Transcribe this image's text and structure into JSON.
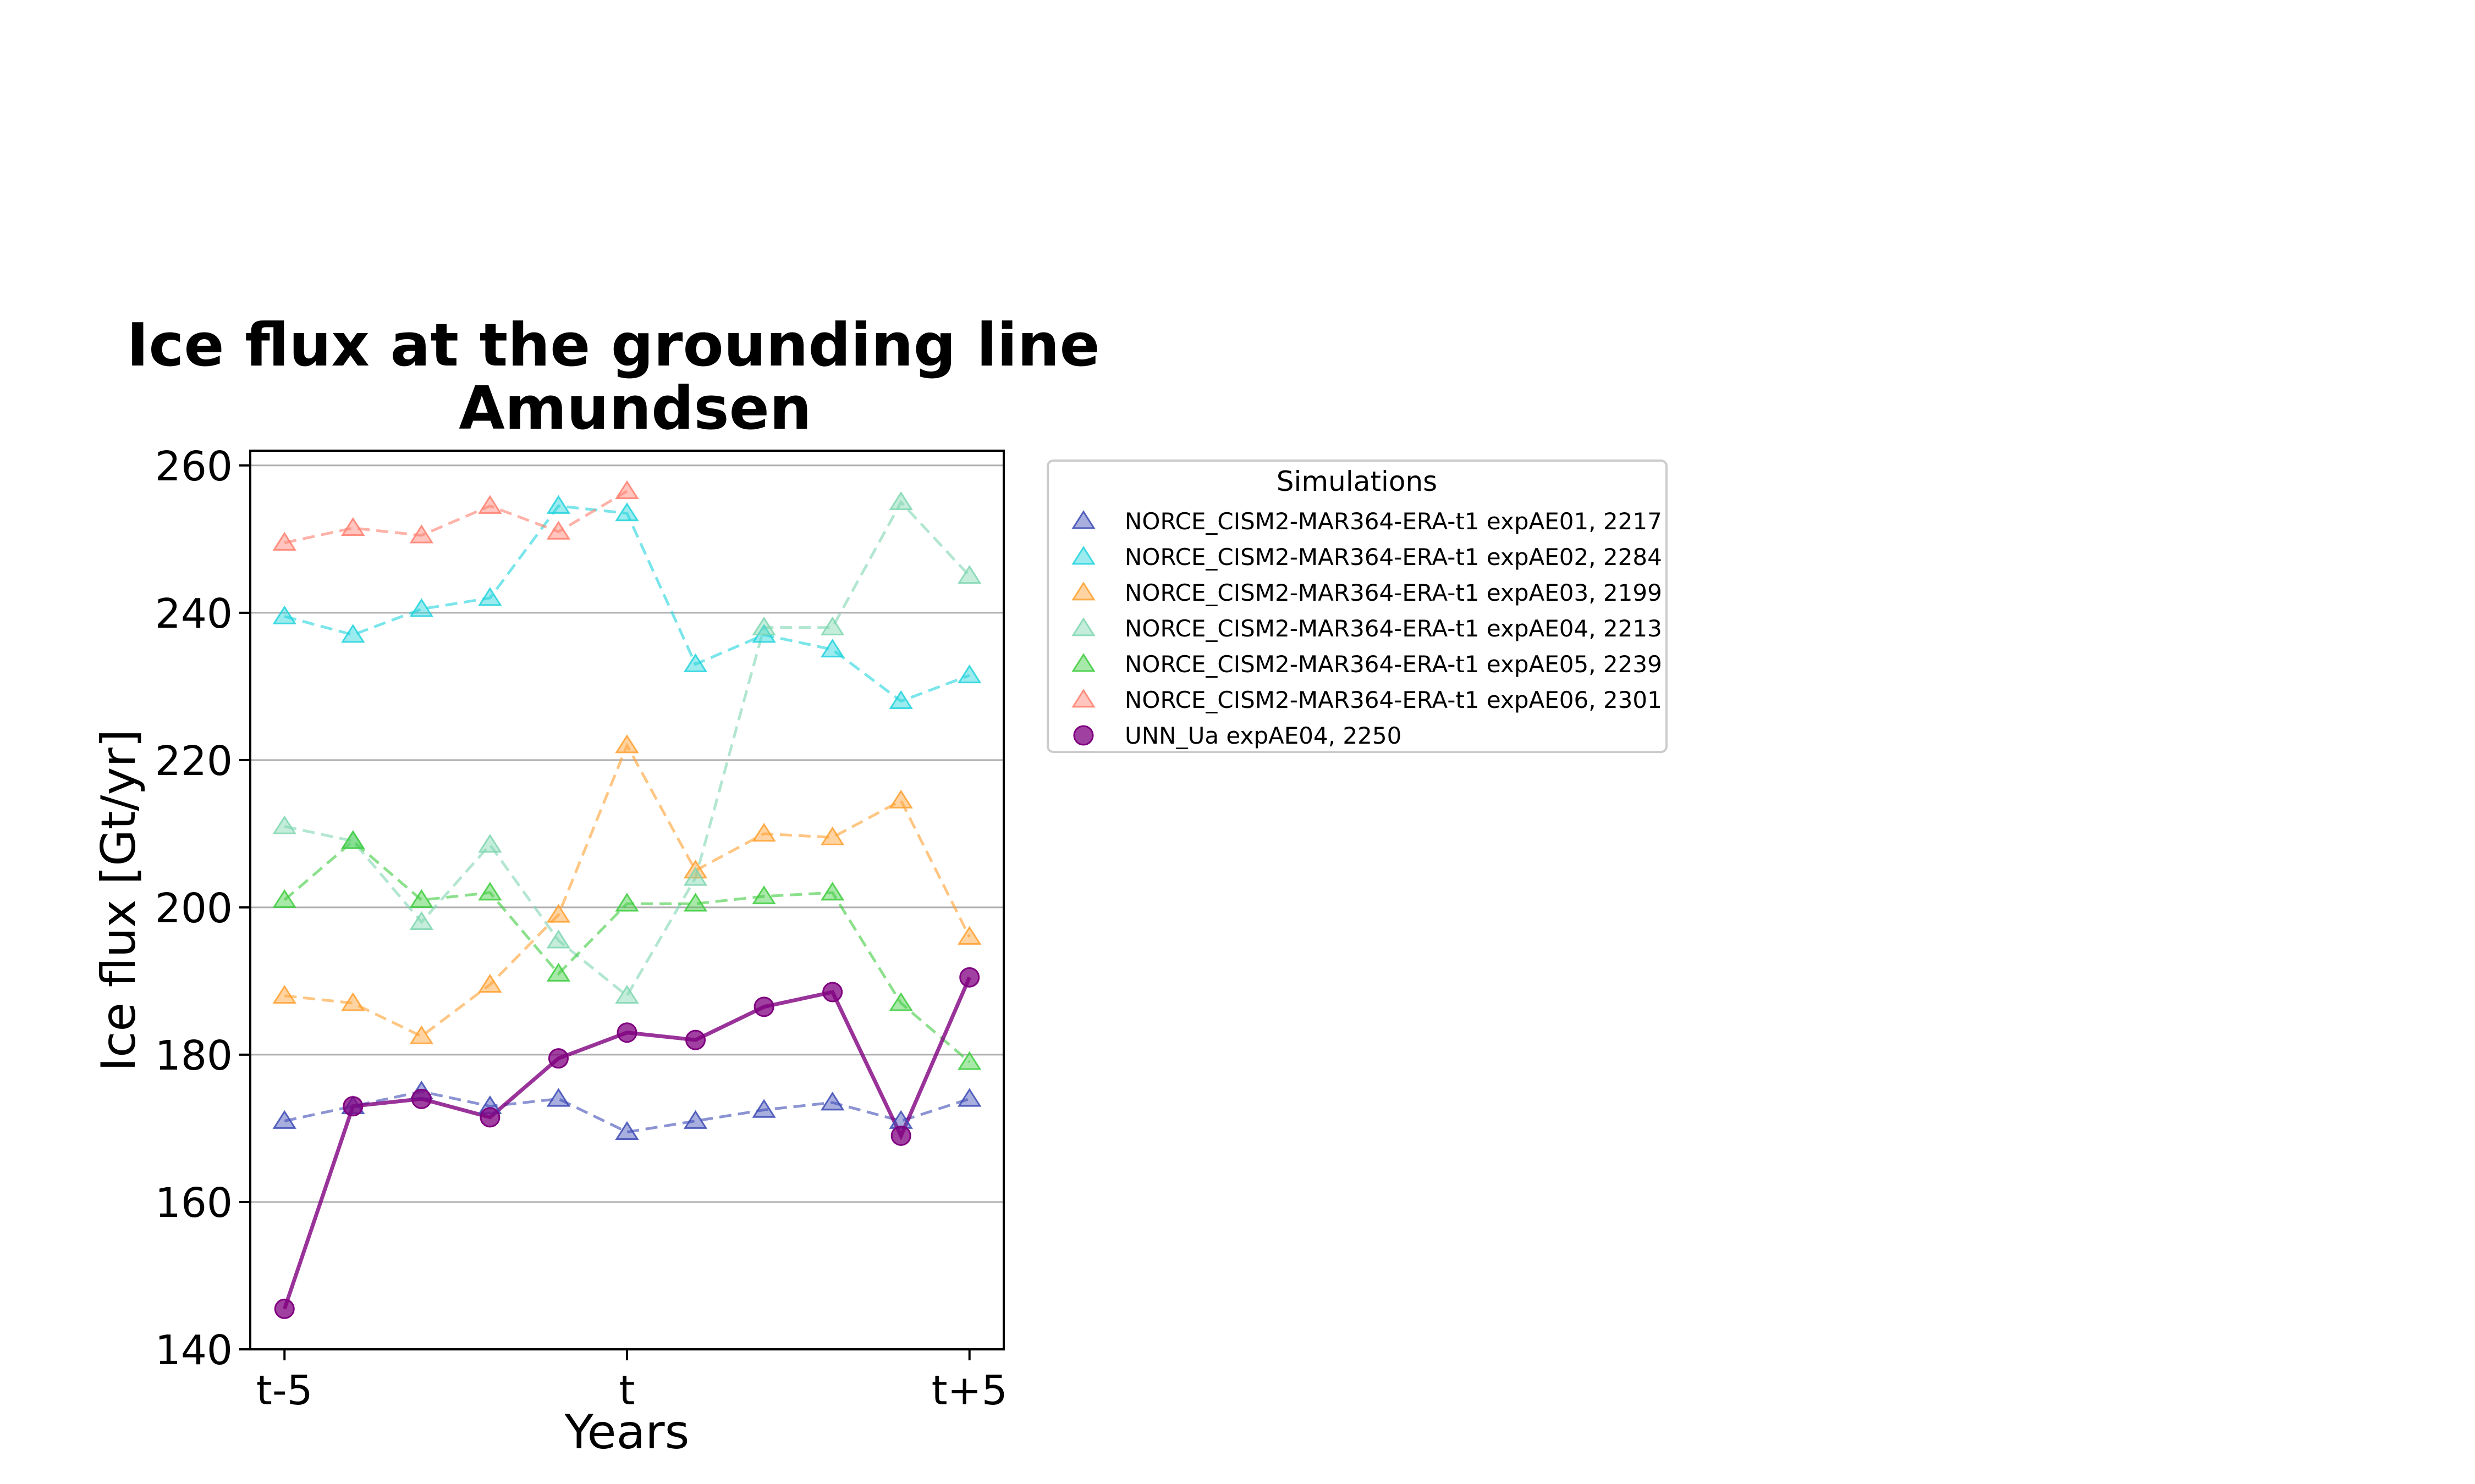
{
  "chart_data": {
    "type": "line",
    "title": "Ice flux at the grounding line",
    "subtitle": "Amundsen",
    "xlabel": "Years",
    "ylabel": "Ice flux [Gt/yr]",
    "x": [
      -5,
      -4,
      -3,
      -2,
      -1,
      0,
      1,
      2,
      3,
      4,
      5
    ],
    "xlim": [
      -5.5,
      5.5
    ],
    "ylim": [
      140,
      262
    ],
    "x_ticks": [
      {
        "value": -5,
        "label": "t-5"
      },
      {
        "value": 0,
        "label": "t"
      },
      {
        "value": 5,
        "label": "t+5"
      }
    ],
    "y_ticks": [
      {
        "value": 140,
        "label": "140"
      },
      {
        "value": 160,
        "label": "160"
      },
      {
        "value": 180,
        "label": "180"
      },
      {
        "value": 200,
        "label": "200"
      },
      {
        "value": 220,
        "label": "220"
      },
      {
        "value": 240,
        "label": "240"
      },
      {
        "value": 260,
        "label": "260"
      }
    ],
    "grid": "horizontal",
    "legend": {
      "title": "Simulations",
      "placement": "outside-right"
    },
    "series": [
      {
        "name": "NORCE_CISM2-MAR364-ERA-t1 expAE01, 2217",
        "color": "#3d4bb5",
        "marker": "triangle",
        "linestyle": "dashed",
        "values": [
          171,
          173,
          175,
          173,
          174,
          169.5,
          171,
          172.5,
          173.5,
          171,
          174
        ]
      },
      {
        "name": "NORCE_CISM2-MAR364-ERA-t1 expAE02, 2284",
        "color": "#22d3dc",
        "marker": "triangle",
        "linestyle": "dashed",
        "values": [
          239.5,
          237,
          240.5,
          242,
          254.5,
          253.5,
          233,
          237,
          235,
          228,
          231.5
        ]
      },
      {
        "name": "NORCE_CISM2-MAR364-ERA-t1 expAE03, 2199",
        "color": "#ffa030",
        "marker": "triangle",
        "linestyle": "dashed",
        "values": [
          188,
          187,
          182.5,
          189.5,
          199,
          222,
          205,
          210,
          209.5,
          214.5,
          196
        ]
      },
      {
        "name": "NORCE_CISM2-MAR364-ERA-t1 expAE04, 2213",
        "color": "#7fd6b0",
        "marker": "triangle",
        "linestyle": "dashed",
        "values": [
          211,
          209,
          198,
          208.5,
          195.5,
          188,
          204,
          238,
          238,
          255,
          245
        ]
      },
      {
        "name": "NORCE_CISM2-MAR364-ERA-t1 expAE05, 2239",
        "color": "#3fcc3f",
        "marker": "triangle",
        "linestyle": "dashed",
        "values": [
          201,
          209,
          201,
          202,
          191,
          200.5,
          200.5,
          201.5,
          202,
          187,
          179
        ]
      },
      {
        "name": "NORCE_CISM2-MAR364-ERA-t1 expAE06, 2301",
        "color": "#ff7f6e",
        "marker": "triangle",
        "linestyle": "dashed",
        "values": [
          249.5,
          251.5,
          250.5,
          254.5,
          251,
          256.5,
          null,
          null,
          null,
          null,
          null
        ]
      },
      {
        "name": "UNN_Ua expAE04, 2250",
        "color": "#800080",
        "marker": "circle",
        "linestyle": "solid",
        "values": [
          145.5,
          173,
          174,
          171.5,
          179.5,
          183,
          182,
          186.5,
          188.5,
          169,
          190.5
        ]
      }
    ]
  }
}
